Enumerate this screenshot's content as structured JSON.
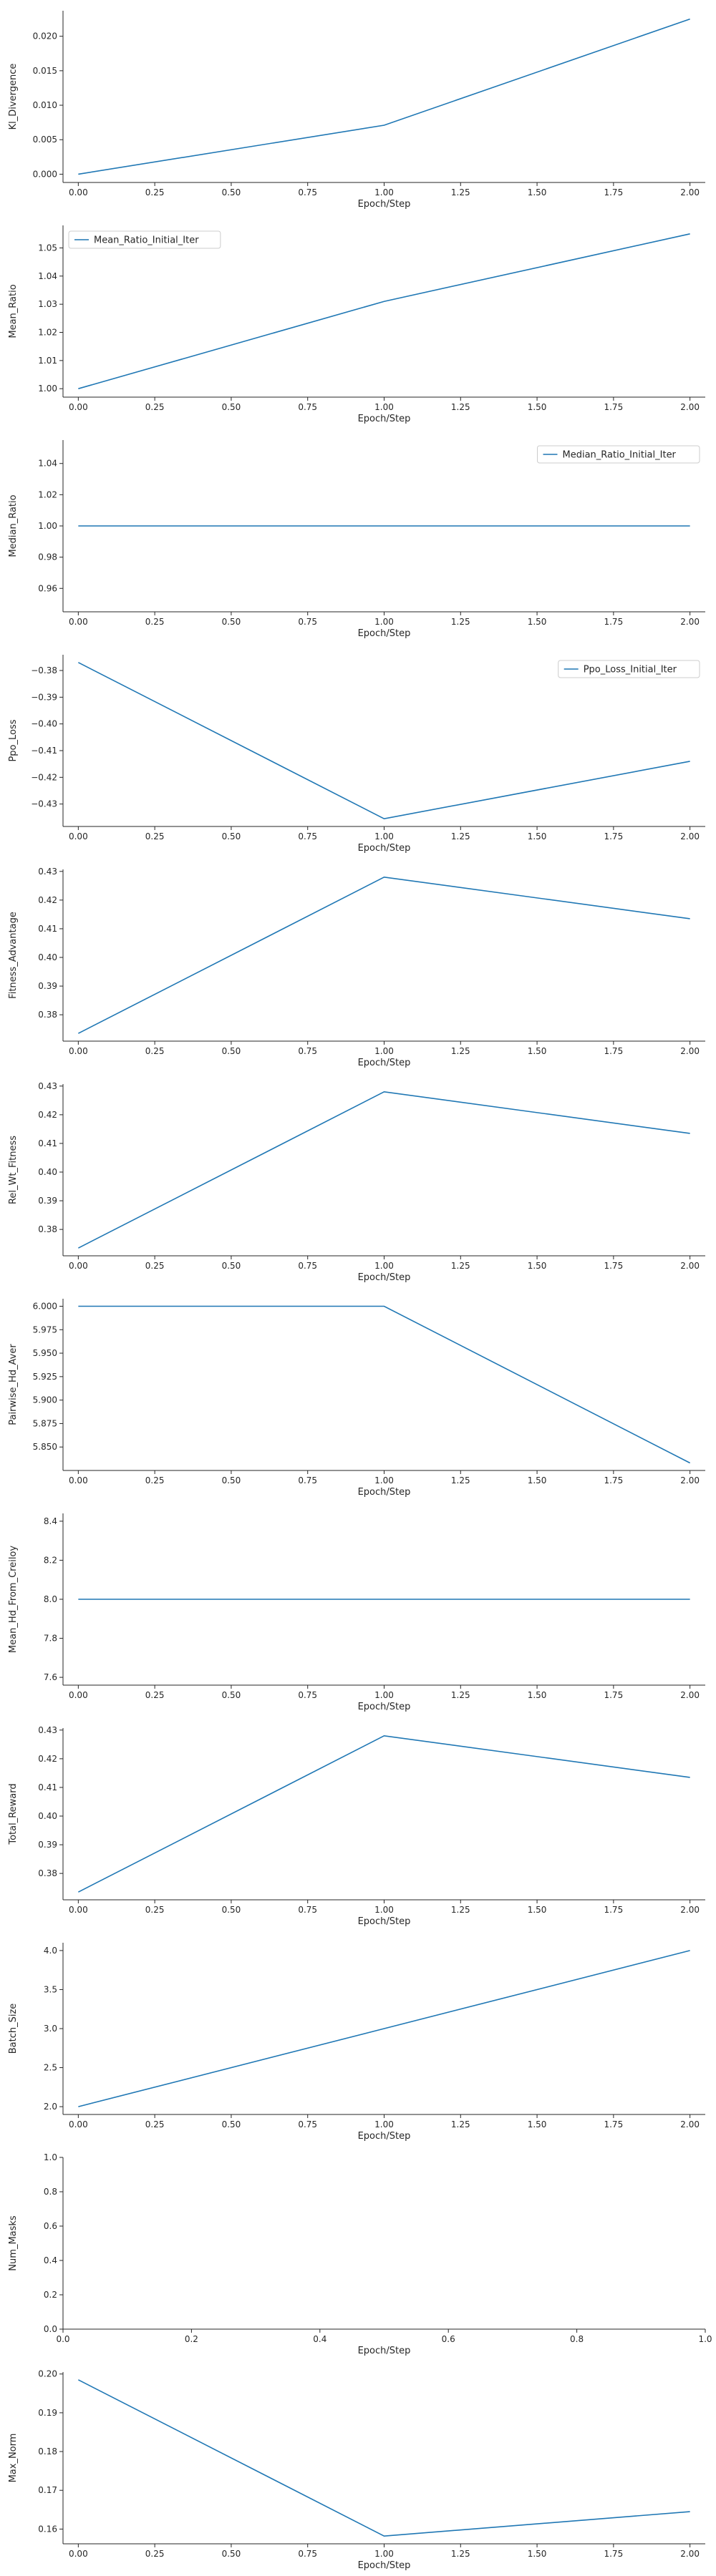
{
  "chart_data": [
    {
      "type": "line",
      "ylabel": "Kl_Divergence",
      "xlabel": "Epoch/Step",
      "x": [
        0,
        1,
        2
      ],
      "series": [
        {
          "values": [
            0.0,
            0.0071,
            0.0225
          ]
        }
      ],
      "xlim": [
        -0.05,
        2.05
      ],
      "xticks": [
        0,
        0.25,
        0.5,
        0.75,
        1.0,
        1.25,
        1.5,
        1.75,
        2.0
      ],
      "xtick_labels": [
        "0.00",
        "0.25",
        "0.50",
        "0.75",
        "1.00",
        "1.25",
        "1.50",
        "1.75",
        "2.00"
      ],
      "ylim": [
        -0.0012,
        0.0237
      ],
      "yticks": [
        0,
        0.005,
        0.01,
        0.015,
        0.02
      ],
      "ytick_labels": [
        "0.000",
        "0.005",
        "0.010",
        "0.015",
        "0.020"
      ],
      "legend": null
    },
    {
      "type": "line",
      "ylabel": "Mean_Ratio",
      "xlabel": "Epoch/Step",
      "x": [
        0,
        1,
        2
      ],
      "series": [
        {
          "name": "Mean_Ratio_Initial_Iter",
          "values": [
            1.0,
            1.031,
            1.055
          ]
        }
      ],
      "xlim": [
        -0.05,
        2.05
      ],
      "xticks": [
        0,
        0.25,
        0.5,
        0.75,
        1.0,
        1.25,
        1.5,
        1.75,
        2.0
      ],
      "xtick_labels": [
        "0.00",
        "0.25",
        "0.50",
        "0.75",
        "1.00",
        "1.25",
        "1.50",
        "1.75",
        "2.00"
      ],
      "ylim": [
        0.997,
        1.058
      ],
      "yticks": [
        1.0,
        1.01,
        1.02,
        1.03,
        1.04,
        1.05
      ],
      "ytick_labels": [
        "1.00",
        "1.01",
        "1.02",
        "1.03",
        "1.04",
        "1.05"
      ],
      "legend": "upper-left"
    },
    {
      "type": "line",
      "ylabel": "Median_Ratio",
      "xlabel": "Epoch/Step",
      "x": [
        0,
        1,
        2
      ],
      "series": [
        {
          "name": "Median_Ratio_Initial_Iter",
          "values": [
            1.0,
            1.0,
            1.0
          ]
        }
      ],
      "xlim": [
        -0.05,
        2.05
      ],
      "xticks": [
        0,
        0.25,
        0.5,
        0.75,
        1.0,
        1.25,
        1.5,
        1.75,
        2.0
      ],
      "xtick_labels": [
        "0.00",
        "0.25",
        "0.50",
        "0.75",
        "1.00",
        "1.25",
        "1.50",
        "1.75",
        "2.00"
      ],
      "ylim": [
        0.945,
        1.055
      ],
      "yticks": [
        0.96,
        0.98,
        1.0,
        1.02,
        1.04
      ],
      "ytick_labels": [
        "0.96",
        "0.98",
        "1.00",
        "1.02",
        "1.04"
      ],
      "legend": "upper-right"
    },
    {
      "type": "line",
      "ylabel": "Ppo_Loss",
      "xlabel": "Epoch/Step",
      "x": [
        0,
        1,
        2
      ],
      "series": [
        {
          "name": "Ppo_Loss_Initial_Iter",
          "values": [
            -0.377,
            -0.4355,
            -0.414
          ]
        }
      ],
      "xlim": [
        -0.05,
        2.05
      ],
      "xticks": [
        0,
        0.25,
        0.5,
        0.75,
        1.0,
        1.25,
        1.5,
        1.75,
        2.0
      ],
      "xtick_labels": [
        "0.00",
        "0.25",
        "0.50",
        "0.75",
        "1.00",
        "1.25",
        "1.50",
        "1.75",
        "2.00"
      ],
      "ylim": [
        -0.4384,
        -0.3741
      ],
      "yticks": [
        -0.38,
        -0.39,
        -0.4,
        -0.41,
        -0.42,
        -0.43
      ],
      "ytick_labels": [
        "−0.38",
        "−0.39",
        "−0.40",
        "−0.41",
        "−0.42",
        "−0.43"
      ],
      "legend": "upper-right"
    },
    {
      "type": "line",
      "ylabel": "Fitness_Advantage",
      "xlabel": "Epoch/Step",
      "x": [
        0,
        1,
        2
      ],
      "series": [
        {
          "values": [
            0.3735,
            0.428,
            0.4135
          ]
        }
      ],
      "xlim": [
        -0.05,
        2.05
      ],
      "xticks": [
        0,
        0.25,
        0.5,
        0.75,
        1.0,
        1.25,
        1.5,
        1.75,
        2.0
      ],
      "xtick_labels": [
        "0.00",
        "0.25",
        "0.50",
        "0.75",
        "1.00",
        "1.25",
        "1.50",
        "1.75",
        "2.00"
      ],
      "ylim": [
        0.3708,
        0.4307
      ],
      "yticks": [
        0.38,
        0.39,
        0.4,
        0.41,
        0.42,
        0.43
      ],
      "ytick_labels": [
        "0.38",
        "0.39",
        "0.40",
        "0.41",
        "0.42",
        "0.43"
      ],
      "legend": null
    },
    {
      "type": "line",
      "ylabel": "Rel_Wt_Fitness",
      "xlabel": "Epoch/Step",
      "x": [
        0,
        1,
        2
      ],
      "series": [
        {
          "values": [
            0.3735,
            0.428,
            0.4135
          ]
        }
      ],
      "xlim": [
        -0.05,
        2.05
      ],
      "xticks": [
        0,
        0.25,
        0.5,
        0.75,
        1.0,
        1.25,
        1.5,
        1.75,
        2.0
      ],
      "xtick_labels": [
        "0.00",
        "0.25",
        "0.50",
        "0.75",
        "1.00",
        "1.25",
        "1.50",
        "1.75",
        "2.00"
      ],
      "ylim": [
        0.3708,
        0.4307
      ],
      "yticks": [
        0.38,
        0.39,
        0.4,
        0.41,
        0.42,
        0.43
      ],
      "ytick_labels": [
        "0.38",
        "0.39",
        "0.40",
        "0.41",
        "0.42",
        "0.43"
      ],
      "legend": null
    },
    {
      "type": "line",
      "ylabel": "Pairwise_Hd_Aver",
      "xlabel": "Epoch/Step",
      "x": [
        0,
        1,
        2
      ],
      "series": [
        {
          "values": [
            6.0,
            6.0,
            5.833
          ]
        }
      ],
      "xlim": [
        -0.05,
        2.05
      ],
      "xticks": [
        0,
        0.25,
        0.5,
        0.75,
        1.0,
        1.25,
        1.5,
        1.75,
        2.0
      ],
      "xtick_labels": [
        "0.00",
        "0.25",
        "0.50",
        "0.75",
        "1.00",
        "1.25",
        "1.50",
        "1.75",
        "2.00"
      ],
      "ylim": [
        5.825,
        6.008
      ],
      "yticks": [
        5.85,
        5.875,
        5.9,
        5.925,
        5.95,
        5.975,
        6.0
      ],
      "ytick_labels": [
        "5.850",
        "5.875",
        "5.900",
        "5.925",
        "5.950",
        "5.975",
        "6.000"
      ],
      "legend": null
    },
    {
      "type": "line",
      "ylabel": "Mean_Hd_From_Creiloy",
      "xlabel": "Epoch/Step",
      "x": [
        0,
        1,
        2
      ],
      "series": [
        {
          "values": [
            8.0,
            8.0,
            8.0
          ]
        }
      ],
      "xlim": [
        -0.05,
        2.05
      ],
      "xticks": [
        0,
        0.25,
        0.5,
        0.75,
        1.0,
        1.25,
        1.5,
        1.75,
        2.0
      ],
      "xtick_labels": [
        "0.00",
        "0.25",
        "0.50",
        "0.75",
        "1.00",
        "1.25",
        "1.50",
        "1.75",
        "2.00"
      ],
      "ylim": [
        7.56,
        8.44
      ],
      "yticks": [
        7.6,
        7.8,
        8.0,
        8.2,
        8.4
      ],
      "ytick_labels": [
        "7.6",
        "7.8",
        "8.0",
        "8.2",
        "8.4"
      ],
      "legend": null
    },
    {
      "type": "line",
      "ylabel": "Total_Reward",
      "xlabel": "Epoch/Step",
      "x": [
        0,
        1,
        2
      ],
      "series": [
        {
          "values": [
            0.3735,
            0.428,
            0.4135
          ]
        }
      ],
      "xlim": [
        -0.05,
        2.05
      ],
      "xticks": [
        0,
        0.25,
        0.5,
        0.75,
        1.0,
        1.25,
        1.5,
        1.75,
        2.0
      ],
      "xtick_labels": [
        "0.00",
        "0.25",
        "0.50",
        "0.75",
        "1.00",
        "1.25",
        "1.50",
        "1.75",
        "2.00"
      ],
      "ylim": [
        0.3708,
        0.4307
      ],
      "yticks": [
        0.38,
        0.39,
        0.4,
        0.41,
        0.42,
        0.43
      ],
      "ytick_labels": [
        "0.38",
        "0.39",
        "0.40",
        "0.41",
        "0.42",
        "0.43"
      ],
      "legend": null
    },
    {
      "type": "line",
      "ylabel": "Batch_Size",
      "xlabel": "Epoch/Step",
      "x": [
        0,
        1,
        2
      ],
      "series": [
        {
          "values": [
            2.0,
            3.0,
            4.0
          ]
        }
      ],
      "xlim": [
        -0.05,
        2.05
      ],
      "xticks": [
        0,
        0.25,
        0.5,
        0.75,
        1.0,
        1.25,
        1.5,
        1.75,
        2.0
      ],
      "xtick_labels": [
        "0.00",
        "0.25",
        "0.50",
        "0.75",
        "1.00",
        "1.25",
        "1.50",
        "1.75",
        "2.00"
      ],
      "ylim": [
        1.9,
        4.1
      ],
      "yticks": [
        2.0,
        2.5,
        3.0,
        3.5,
        4.0
      ],
      "ytick_labels": [
        "2.0",
        "2.5",
        "3.0",
        "3.5",
        "4.0"
      ],
      "legend": null
    },
    {
      "type": "line",
      "ylabel": "Num_Masks",
      "xlabel": "Epoch/Step",
      "x": [],
      "series": [],
      "xlim": [
        0,
        1
      ],
      "xticks": [
        0,
        0.2,
        0.4,
        0.6,
        0.8,
        1.0
      ],
      "xtick_labels": [
        "0.0",
        "0.2",
        "0.4",
        "0.6",
        "0.8",
        "1.0"
      ],
      "ylim": [
        0,
        1
      ],
      "yticks": [
        0,
        0.2,
        0.4,
        0.6,
        0.8,
        1.0
      ],
      "ytick_labels": [
        "0.0",
        "0.2",
        "0.4",
        "0.6",
        "0.8",
        "1.0"
      ],
      "legend": null
    },
    {
      "type": "line",
      "ylabel": "Max_Norm",
      "xlabel": "Epoch/Step",
      "x": [
        0,
        1,
        2
      ],
      "series": [
        {
          "values": [
            0.1985,
            0.1582,
            0.1645
          ]
        }
      ],
      "xlim": [
        -0.05,
        2.05
      ],
      "xticks": [
        0,
        0.25,
        0.5,
        0.75,
        1.0,
        1.25,
        1.5,
        1.75,
        2.0
      ],
      "xtick_labels": [
        "0.00",
        "0.25",
        "0.50",
        "0.75",
        "1.00",
        "1.25",
        "1.50",
        "1.75",
        "2.00"
      ],
      "ylim": [
        0.1562,
        0.2005
      ],
      "yticks": [
        0.16,
        0.17,
        0.18,
        0.19,
        0.2
      ],
      "ytick_labels": [
        "0.16",
        "0.17",
        "0.18",
        "0.19",
        "0.20"
      ],
      "legend": null
    }
  ],
  "colors": {
    "line": "#1f77b4",
    "axis": "#262626",
    "text": "#262626"
  }
}
